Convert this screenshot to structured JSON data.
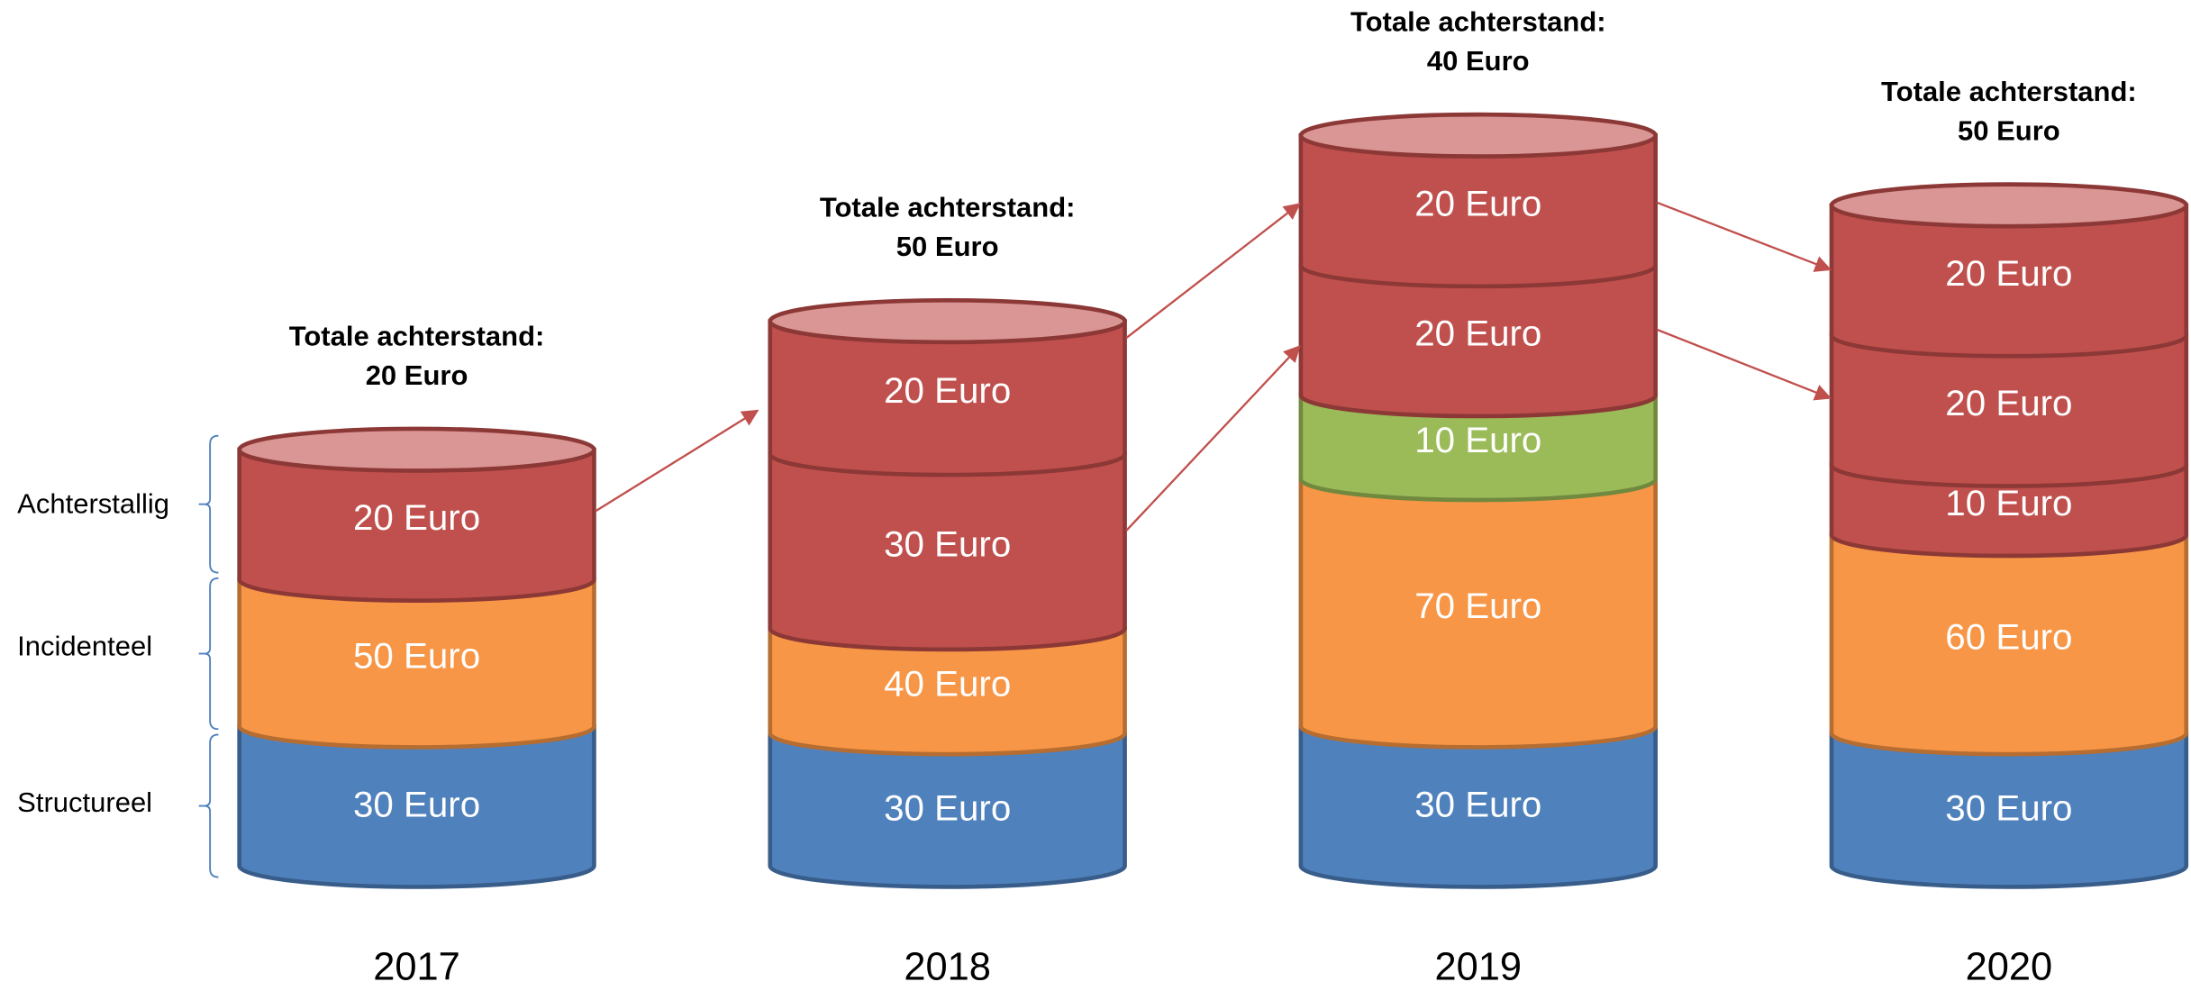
{
  "side_labels": [
    "Achterstallig",
    "Incidenteel",
    "Structureel"
  ],
  "columns": [
    {
      "year": "2017",
      "total": [
        "Totale achterstand:",
        "20 Euro"
      ],
      "segments": [
        {
          "kind": "structureel",
          "label": "30 Euro"
        },
        {
          "kind": "incidenteel",
          "label": "50 Euro"
        },
        {
          "kind": "achterstallig",
          "label": "20 Euro"
        }
      ]
    },
    {
      "year": "2018",
      "total": [
        "Totale achterstand:",
        "50 Euro"
      ],
      "segments": [
        {
          "kind": "structureel",
          "label": "30 Euro"
        },
        {
          "kind": "incidenteel",
          "label": "40 Euro"
        },
        {
          "kind": "achterstallig",
          "label": "30 Euro"
        },
        {
          "kind": "achterstallig",
          "label": "20 Euro"
        }
      ]
    },
    {
      "year": "2019",
      "total": [
        "Totale achterstand:",
        "40 Euro"
      ],
      "segments": [
        {
          "kind": "structureel",
          "label": "30 Euro"
        },
        {
          "kind": "incidenteel",
          "label": "70 Euro"
        },
        {
          "kind": "nieuw",
          "label": "10 Euro"
        },
        {
          "kind": "achterstallig",
          "label": "20 Euro"
        },
        {
          "kind": "achterstallig",
          "label": "20 Euro"
        }
      ]
    },
    {
      "year": "2020",
      "total": [
        "Totale achterstand:",
        "50 Euro"
      ],
      "segments": [
        {
          "kind": "structureel",
          "label": "30 Euro"
        },
        {
          "kind": "incidenteel",
          "label": "60 Euro"
        },
        {
          "kind": "achterstallig",
          "label": "10 Euro"
        },
        {
          "kind": "achterstallig",
          "label": "20 Euro"
        },
        {
          "kind": "achterstallig",
          "label": "20 Euro"
        }
      ]
    }
  ]
}
